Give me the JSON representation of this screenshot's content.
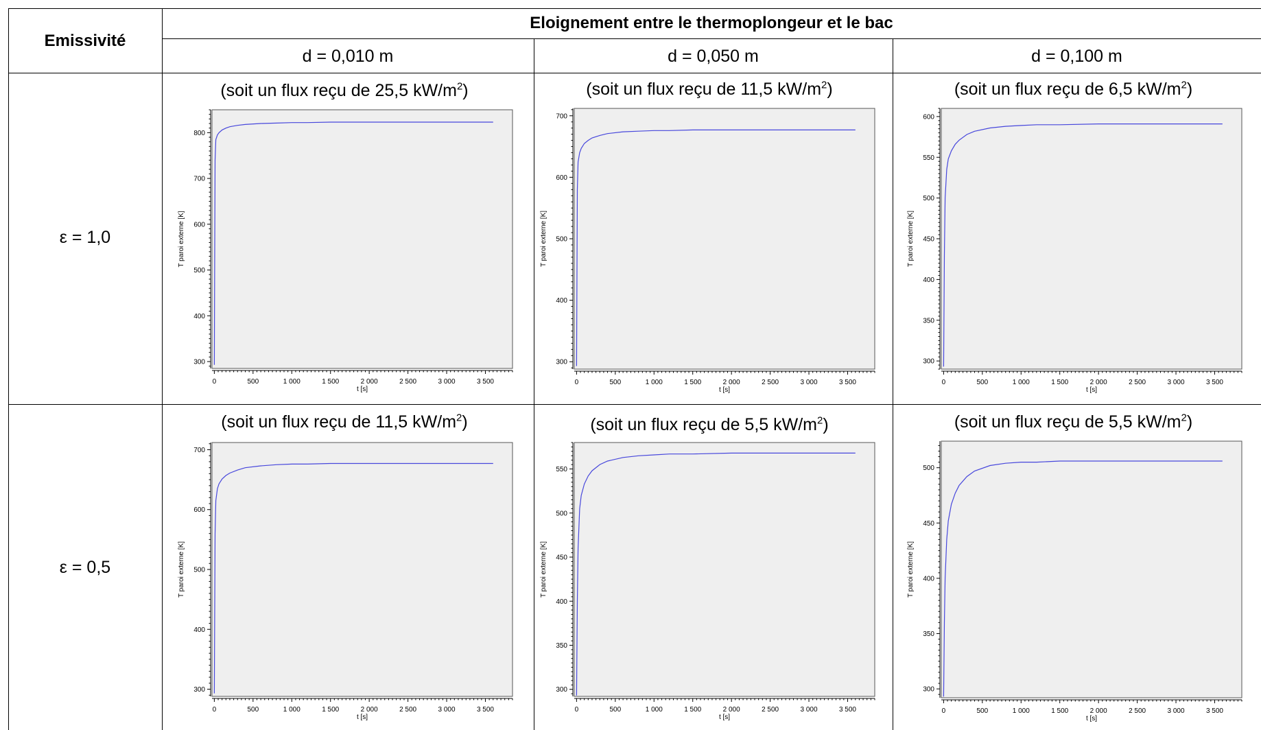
{
  "table": {
    "corner_header": "Emissivité",
    "group_header": "Eloignement entre le thermoplongeur et le bac",
    "columns": [
      "d = 0,010 m",
      "d = 0,050 m",
      "d = 0,100 m"
    ],
    "rows": [
      "ε = 1,0",
      "ε = 0,5"
    ]
  },
  "chart_data": [
    {
      "type": "line",
      "caption_prefix": "(soit un flux reçu de 25,5 kW/m",
      "caption_exp": "2",
      "caption_suffix": ")",
      "xlabel": "t [s]",
      "ylabel": "T paroi externe [K]",
      "xlim": [
        -30,
        3850
      ],
      "ylim": [
        285,
        850
      ],
      "xticks": [
        0,
        500,
        1000,
        1500,
        2000,
        2500,
        3000,
        3500
      ],
      "xtick_labels": [
        "0",
        "500",
        "1 000",
        "1 500",
        "2 000",
        "2 500",
        "3 000",
        "3 500"
      ],
      "yticks": [
        300,
        400,
        500,
        600,
        700,
        800
      ],
      "series": [
        {
          "color": "#4646dc",
          "x": [
            0,
            5,
            10,
            20,
            40,
            60,
            100,
            150,
            200,
            300,
            400,
            600,
            800,
            1000,
            1200,
            1500,
            2000,
            2500,
            3000,
            3600
          ],
          "y": [
            293,
            550,
            740,
            785,
            795,
            800,
            806,
            810,
            813,
            816,
            818,
            820,
            821,
            822,
            822,
            823,
            823,
            823,
            823,
            823
          ]
        }
      ]
    },
    {
      "type": "line",
      "caption_prefix": "(soit un flux reçu de 11,5 kW/m",
      "caption_exp": "2",
      "caption_suffix": ")",
      "xlabel": "t [s]",
      "ylabel": "T paroi externe [K]",
      "xlim": [
        -30,
        3850
      ],
      "ylim": [
        288,
        712
      ],
      "xticks": [
        0,
        500,
        1000,
        1500,
        2000,
        2500,
        3000,
        3500
      ],
      "xtick_labels": [
        "0",
        "500",
        "1 000",
        "1 500",
        "2 000",
        "2 500",
        "3 000",
        "3 500"
      ],
      "yticks": [
        300,
        400,
        500,
        600,
        700
      ],
      "series": [
        {
          "color": "#4646dc",
          "x": [
            0,
            10,
            20,
            40,
            60,
            100,
            150,
            200,
            300,
            400,
            600,
            800,
            1000,
            1200,
            1500,
            2000,
            2500,
            3000,
            3600
          ],
          "y": [
            293,
            580,
            625,
            640,
            647,
            655,
            660,
            664,
            668,
            671,
            674,
            675,
            676,
            676,
            677,
            677,
            677,
            677,
            677
          ]
        }
      ]
    },
    {
      "type": "line",
      "caption_prefix": "(soit un flux reçu de 6,5 kW/m",
      "caption_exp": "2",
      "caption_suffix": ")",
      "xlabel": "t [s]",
      "ylabel": "T paroi externe [K]",
      "xlim": [
        -30,
        3850
      ],
      "ylim": [
        290,
        610
      ],
      "xticks": [
        0,
        500,
        1000,
        1500,
        2000,
        2500,
        3000,
        3500
      ],
      "xtick_labels": [
        "0",
        "500",
        "1 000",
        "1 500",
        "2 000",
        "2 500",
        "3 000",
        "3 500"
      ],
      "yticks": [
        300,
        350,
        400,
        450,
        500,
        550,
        600
      ],
      "series": [
        {
          "color": "#4646dc",
          "x": [
            0,
            10,
            20,
            40,
            60,
            100,
            150,
            200,
            300,
            400,
            600,
            800,
            1000,
            1200,
            1500,
            2000,
            2500,
            3000,
            3600
          ],
          "y": [
            293,
            430,
            500,
            535,
            548,
            558,
            566,
            571,
            578,
            582,
            586,
            588,
            589,
            590,
            590,
            591,
            591,
            591,
            591
          ]
        }
      ]
    },
    {
      "type": "line",
      "caption_prefix": "(soit un flux reçu de 11,5 kW/m",
      "caption_exp": "2",
      "caption_suffix": ")",
      "xlabel": "t [s]",
      "ylabel": "T paroi externe [K]",
      "xlim": [
        -30,
        3850
      ],
      "ylim": [
        288,
        712
      ],
      "xticks": [
        0,
        500,
        1000,
        1500,
        2000,
        2500,
        3000,
        3500
      ],
      "xtick_labels": [
        "0",
        "500",
        "1 000",
        "1 500",
        "2 000",
        "2 500",
        "3 000",
        "3 500"
      ],
      "yticks": [
        300,
        400,
        500,
        600,
        700
      ],
      "series": [
        {
          "color": "#4646dc",
          "x": [
            0,
            10,
            20,
            40,
            60,
            100,
            150,
            200,
            300,
            400,
            600,
            800,
            1000,
            1200,
            1500,
            2000,
            2500,
            3000,
            3600
          ],
          "y": [
            293,
            560,
            615,
            635,
            643,
            651,
            657,
            661,
            666,
            670,
            673,
            675,
            676,
            676,
            677,
            677,
            677,
            677,
            677
          ]
        }
      ]
    },
    {
      "type": "line",
      "caption_prefix": "(soit un flux reçu de 5,5 kW/m",
      "caption_exp": "2",
      "caption_suffix": ")",
      "xlabel": "t [s]",
      "ylabel": "T paroi externe [K]",
      "xlim": [
        -30,
        3850
      ],
      "ylim": [
        292,
        580
      ],
      "xticks": [
        0,
        500,
        1000,
        1500,
        2000,
        2500,
        3000,
        3500
      ],
      "xtick_labels": [
        "0",
        "500",
        "1 000",
        "1 500",
        "2 000",
        "2 500",
        "3 000",
        "3 500"
      ],
      "yticks": [
        300,
        350,
        400,
        450,
        500,
        550
      ],
      "series": [
        {
          "color": "#4646dc",
          "x": [
            0,
            10,
            20,
            40,
            60,
            100,
            150,
            200,
            300,
            400,
            600,
            800,
            1000,
            1200,
            1500,
            2000,
            2500,
            3000,
            3600
          ],
          "y": [
            293,
            400,
            460,
            505,
            520,
            533,
            542,
            548,
            555,
            559,
            563,
            565,
            566,
            567,
            567,
            568,
            568,
            568,
            568
          ]
        }
      ]
    },
    {
      "type": "line",
      "caption_prefix": "(soit un flux reçu de 5,5 kW/m",
      "caption_exp": "2",
      "caption_suffix": ")",
      "xlabel": "t [s]",
      "ylabel": "T paroi externe [K]",
      "xlim": [
        -30,
        3850
      ],
      "ylim": [
        292,
        524
      ],
      "xticks": [
        0,
        500,
        1000,
        1500,
        2000,
        2500,
        3000,
        3500
      ],
      "xtick_labels": [
        "0",
        "500",
        "1 000",
        "1 500",
        "2 000",
        "2 500",
        "3 000",
        "3 500"
      ],
      "yticks": [
        300,
        350,
        400,
        450,
        500
      ],
      "series": [
        {
          "color": "#4646dc",
          "x": [
            0,
            10,
            20,
            40,
            60,
            100,
            150,
            200,
            300,
            400,
            600,
            800,
            1000,
            1200,
            1500,
            2000,
            2500,
            3000,
            3600
          ],
          "y": [
            293,
            360,
            400,
            435,
            452,
            467,
            477,
            484,
            492,
            497,
            502,
            504,
            505,
            505,
            506,
            506,
            506,
            506,
            506
          ]
        }
      ]
    }
  ]
}
